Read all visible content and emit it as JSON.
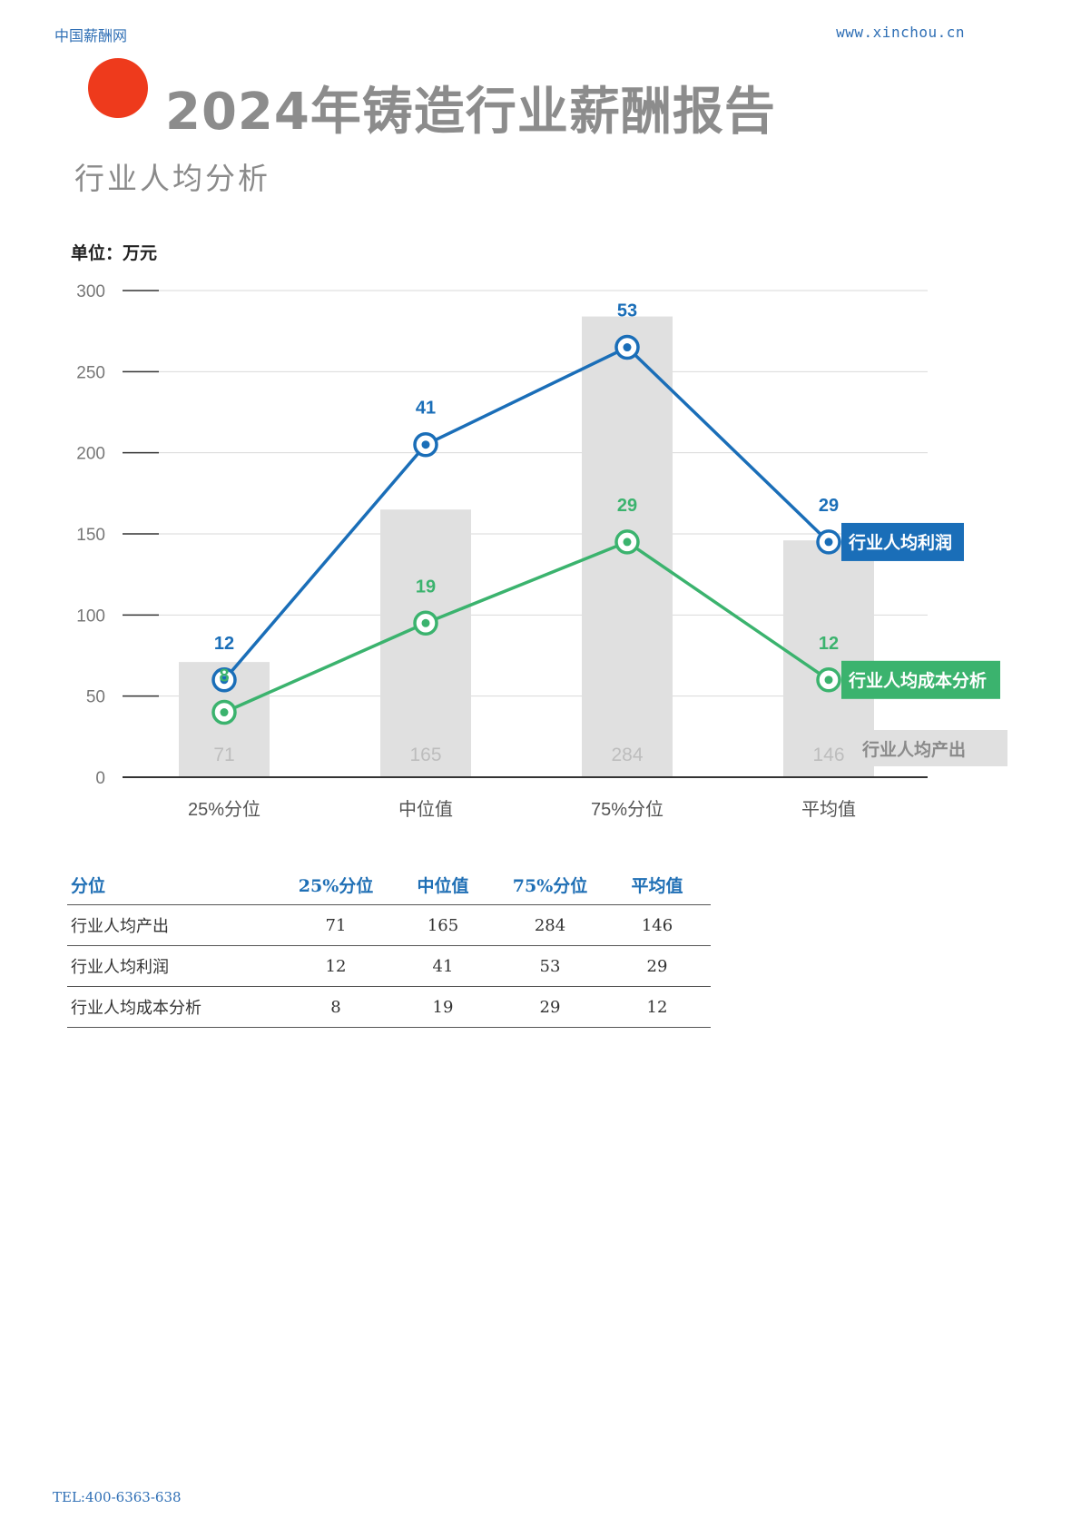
{
  "header": {
    "site_name": "中国薪酬网",
    "url": "www.xinchou.cn"
  },
  "title": "2024年铸造行业薪酬报告",
  "subtitle": "行业人均分析",
  "unit_label": "单位：万元",
  "colors": {
    "accent_dot": "#ee3a1c",
    "profit": "#1a6eb8",
    "cost": "#3bb36e",
    "output": "#e0e0e0",
    "header_text": "#2f6fb5"
  },
  "chart_data": {
    "type": "bar",
    "categories": [
      "25%分位",
      "中位值",
      "75%分位",
      "平均值"
    ],
    "ylim": [
      0,
      300
    ],
    "yticks": [
      0,
      50,
      100,
      150,
      200,
      250,
      300
    ],
    "grid": true,
    "series": [
      {
        "name": "行业人均产出",
        "kind": "bar",
        "values": [
          71,
          165,
          284,
          146
        ],
        "labels": [
          "71",
          "165",
          "284",
          "146"
        ]
      },
      {
        "name": "行业人均利润",
        "kind": "line",
        "values": [
          60,
          205,
          265,
          145
        ],
        "labels": [
          "12",
          "41",
          "53",
          "29"
        ]
      },
      {
        "name": "行业人均成本分析",
        "kind": "line",
        "values": [
          40,
          95,
          145,
          60
        ],
        "labels": [
          "8",
          "19",
          "29",
          "12"
        ]
      }
    ]
  },
  "table": {
    "headers": [
      "分位",
      "25%分位",
      "中位值",
      "75%分位",
      "平均值"
    ],
    "rows": [
      [
        "行业人均产出",
        "71",
        "165",
        "284",
        "146"
      ],
      [
        "行业人均利润",
        "12",
        "41",
        "53",
        "29"
      ],
      [
        "行业人均成本分析",
        "8",
        "19",
        "29",
        "12"
      ]
    ]
  },
  "footer": {
    "phone": "TEL:400-6363-638"
  }
}
